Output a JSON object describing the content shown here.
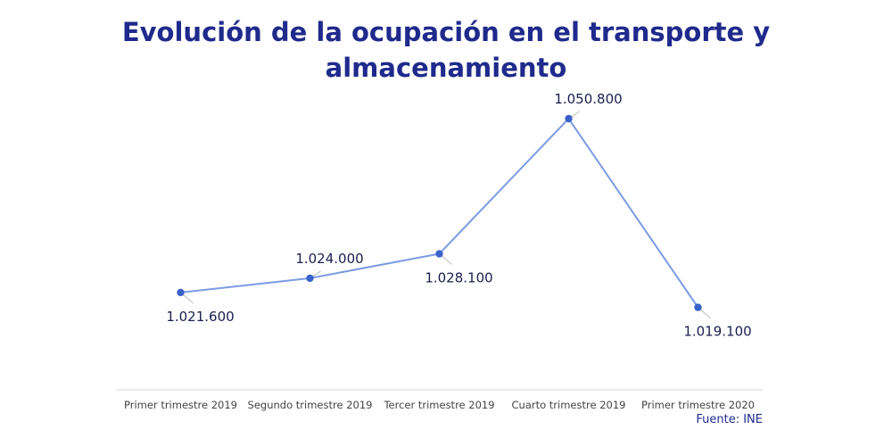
{
  "title_lines": [
    "Evolución de la ocupación en el transporte y",
    "almacenamiento"
  ],
  "source": "Fuente: INE",
  "colors": {
    "title": "#1f2a8c",
    "line": "#7b9be3",
    "marker": "#3a62c9",
    "value_label": "#1a1f4d",
    "axis": "#d9d9d9",
    "tick_label": "#444444",
    "leader": "#bbbbbb"
  },
  "chart_data": {
    "type": "line",
    "title": "Evolución de la ocupación en el transporte y almacenamiento",
    "categories": [
      "Primer trimestre 2019",
      "Segundo trimestre 2019",
      "Tercer trimestre 2019",
      "Cuarto trimestre 2019",
      "Primer trimestre 2020"
    ],
    "series": [
      {
        "values": [
          1021600,
          1024000,
          1028100,
          1050800,
          1019100
        ],
        "labels": [
          "1.021.600",
          "1.024.000",
          "1.028.100",
          "1.050.800",
          "1.019.100"
        ]
      }
    ],
    "label_placement": [
      "below",
      "above",
      "below",
      "above",
      "below"
    ],
    "ylim": [
      1012000,
      1052000
    ],
    "grid": false,
    "legend": "none"
  }
}
